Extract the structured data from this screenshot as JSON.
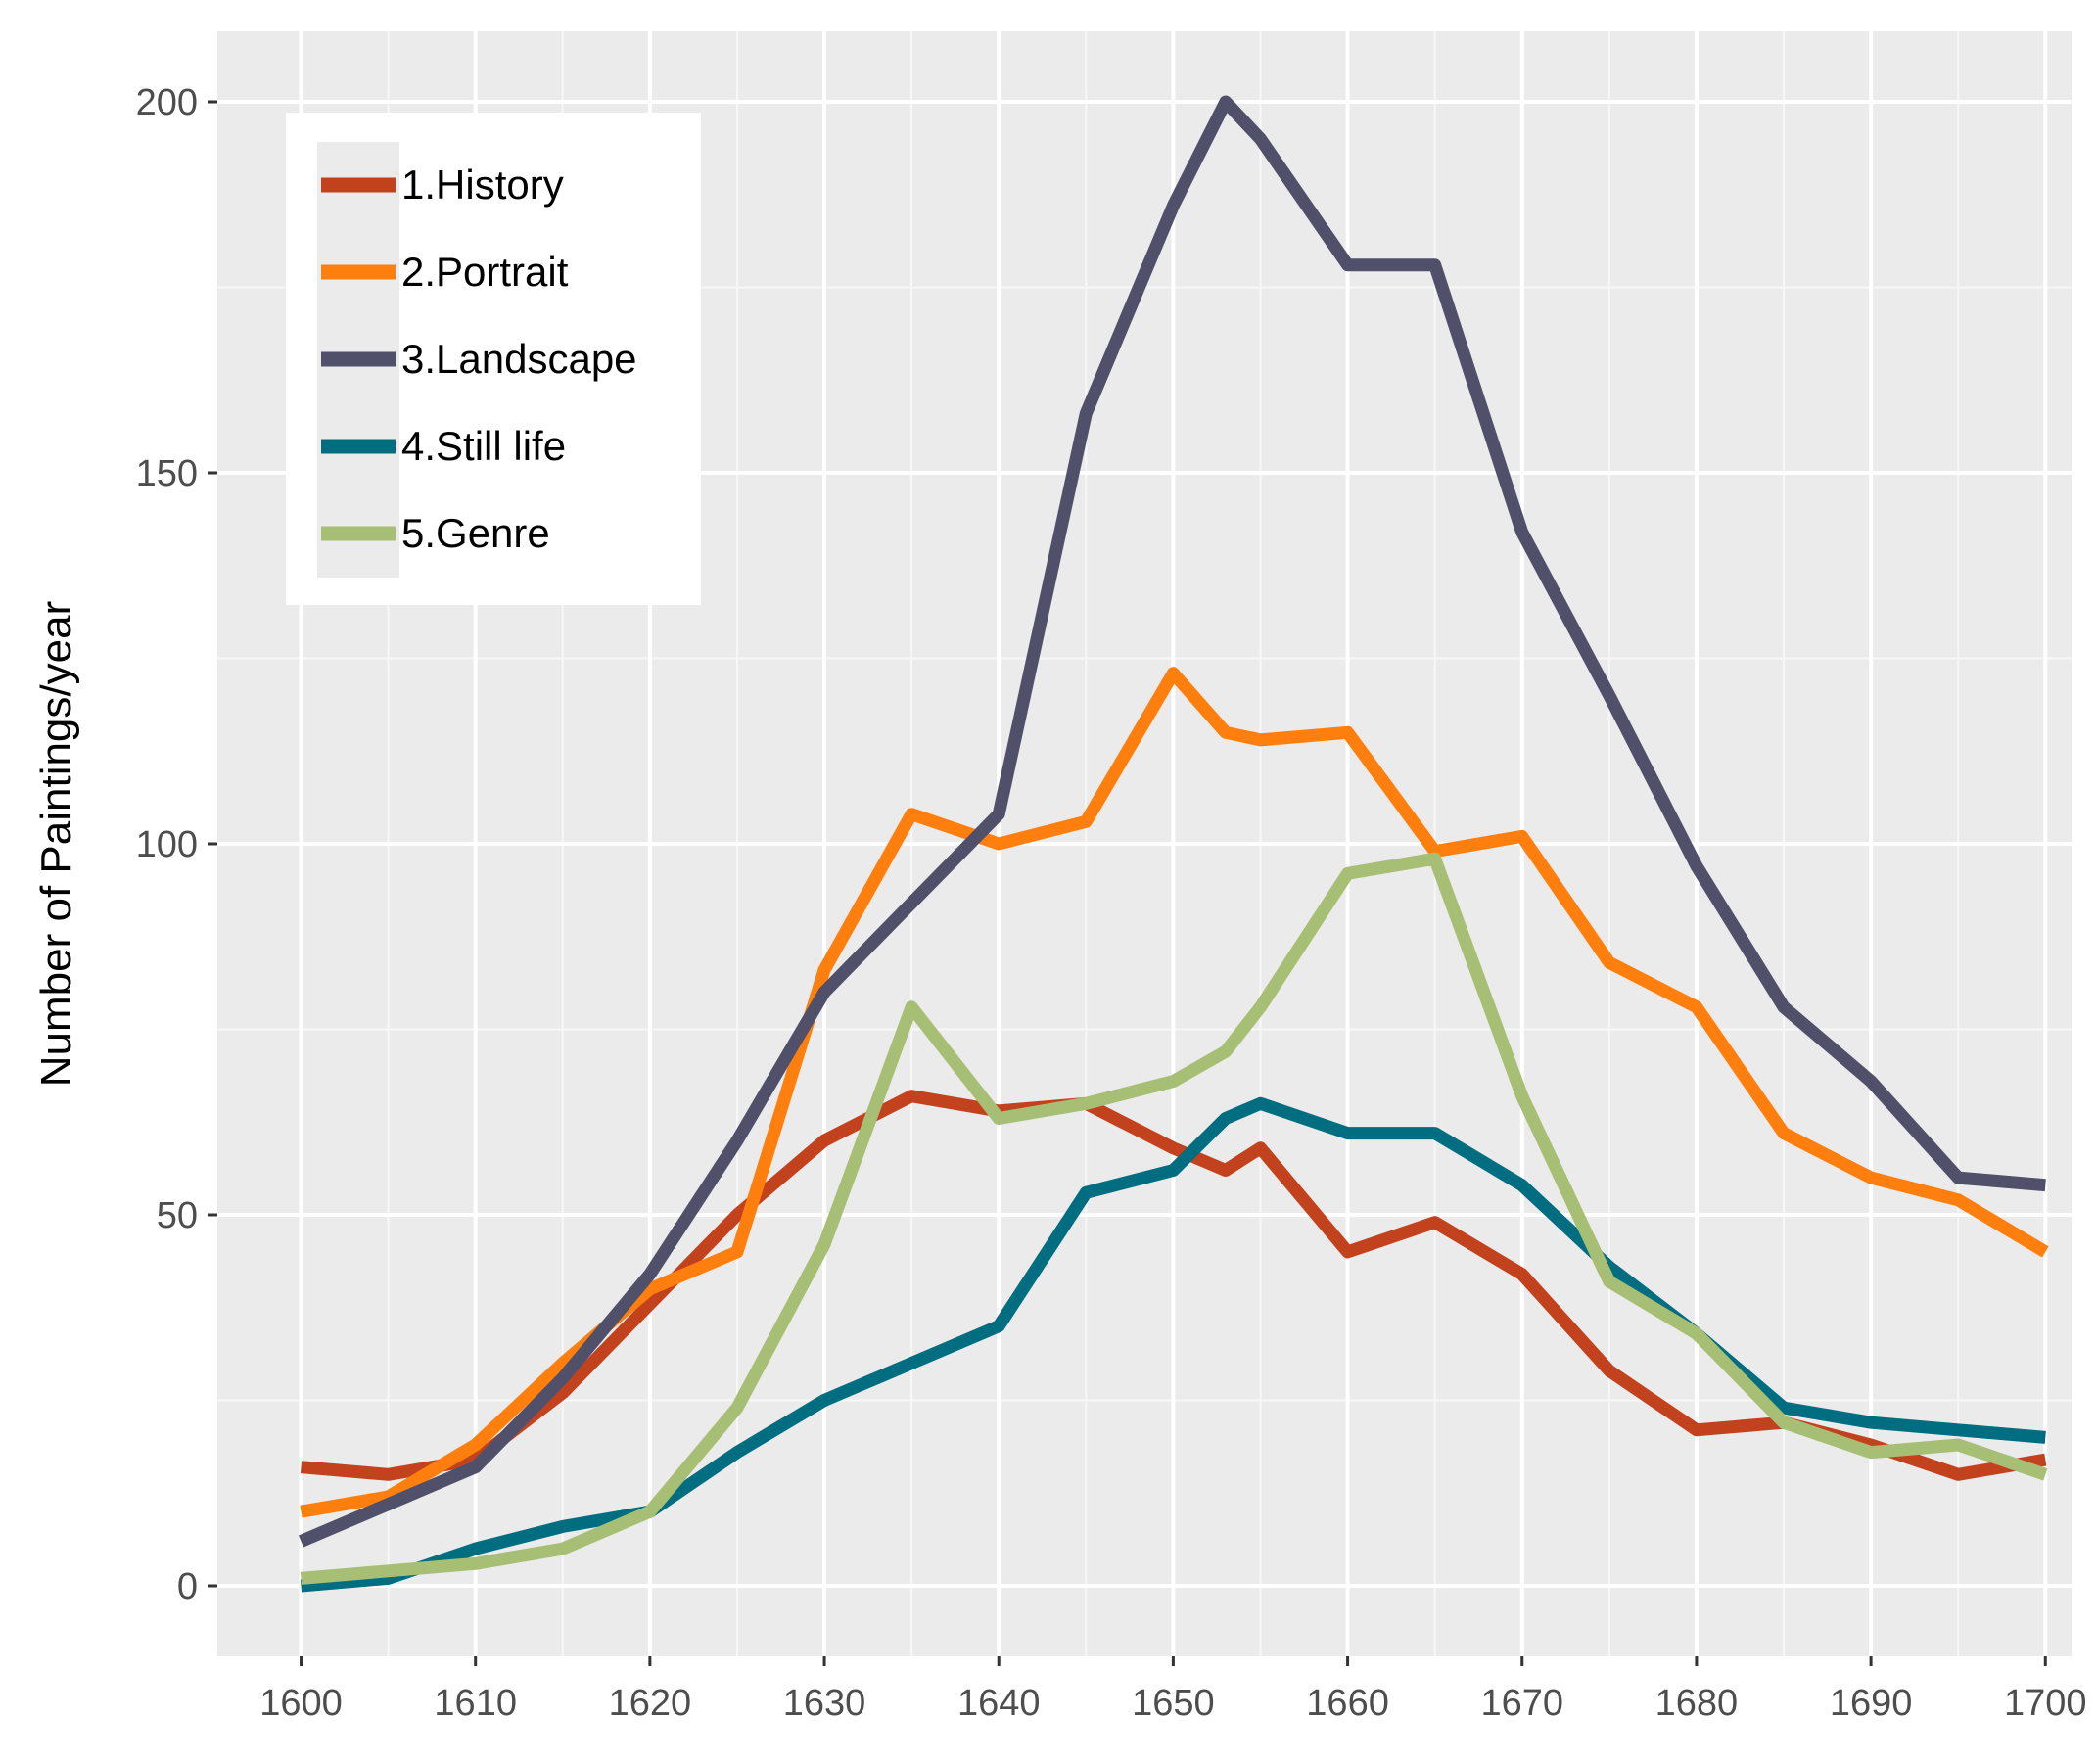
{
  "chart_data": {
    "type": "line",
    "title": "",
    "xlabel": "",
    "ylabel": "Number of Paintings/year",
    "xlim": [
      1595.2,
      1701.5
    ],
    "ylim": [
      -9.5,
      209.5
    ],
    "x_ticks": [
      1600,
      1610,
      1620,
      1630,
      1640,
      1650,
      1660,
      1670,
      1680,
      1690,
      1700
    ],
    "y_ticks": [
      0,
      50,
      100,
      150,
      200
    ],
    "grid": true,
    "legend_position": "top-left",
    "x": [
      1600,
      1605,
      1610,
      1615,
      1620,
      1625,
      1630,
      1635,
      1640,
      1645,
      1650,
      1653,
      1655,
      1660,
      1665,
      1670,
      1675,
      1680,
      1685,
      1690,
      1695,
      1700
    ],
    "series": [
      {
        "name": "1.History",
        "color": "#C3421E",
        "values": [
          16,
          15,
          17,
          26,
          38,
          50,
          60,
          66,
          64,
          65,
          59,
          56,
          59,
          45,
          49,
          42,
          29,
          21,
          22,
          19,
          15,
          17
        ]
      },
      {
        "name": "2.Portrait",
        "color": "#FF7F0E",
        "values": [
          10,
          12,
          19,
          30,
          40,
          45,
          83,
          104,
          100,
          103,
          123,
          115,
          114,
          115,
          99,
          101,
          84,
          78,
          61,
          55,
          52,
          45
        ]
      },
      {
        "name": "3.Landscape",
        "color": "#51506A",
        "values": [
          6,
          11,
          16,
          28,
          42,
          60,
          80,
          92,
          104,
          158,
          186,
          200,
          195,
          178,
          178,
          142,
          120,
          97,
          78,
          68,
          55,
          54
        ]
      },
      {
        "name": "4.Still life",
        "color": "#006D80",
        "values": [
          0,
          1,
          5,
          8,
          10,
          18,
          25,
          30,
          35,
          53,
          56,
          63,
          65,
          61,
          61,
          54,
          43,
          34,
          24,
          22,
          21,
          20
        ]
      },
      {
        "name": "5.Genre",
        "color": "#A7BF74",
        "values": [
          1,
          2,
          3,
          5,
          10,
          24,
          46,
          78,
          63,
          65,
          68,
          72,
          78,
          96,
          98,
          66,
          41,
          34,
          22,
          18,
          19,
          15
        ]
      }
    ]
  }
}
